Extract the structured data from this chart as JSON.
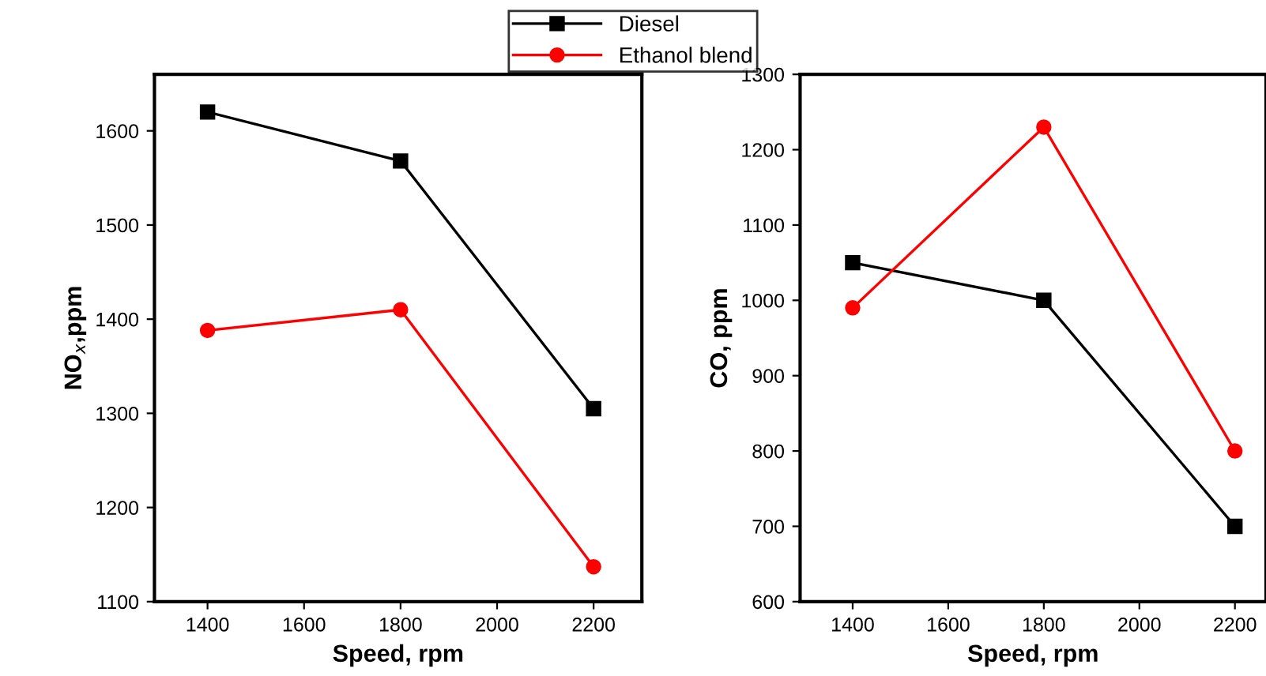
{
  "chart_data": [
    {
      "type": "line",
      "xlabel": "Speed, rpm",
      "ylabel": "NO$_{x}$,ppm",
      "x": [
        1400,
        1800,
        2200
      ],
      "xlim": [
        1290,
        2300
      ],
      "xticks": [
        1400,
        1600,
        1800,
        2000,
        2200
      ],
      "ylim": [
        1100,
        1660
      ],
      "yticks": [
        1100,
        1200,
        1300,
        1400,
        1500,
        1600
      ],
      "grid": false,
      "legend": "top",
      "series": [
        {
          "name": "Diesel",
          "color": "#000000",
          "marker": "square",
          "values": [
            1620,
            1568,
            1305
          ]
        },
        {
          "name": "Ethanol blend",
          "color": "#ff0000",
          "marker": "circle",
          "values": [
            1388,
            1410,
            1137
          ]
        }
      ]
    },
    {
      "type": "line",
      "xlabel": "Speed, rpm",
      "ylabel": "CO, ppm",
      "x": [
        1400,
        1800,
        2200
      ],
      "xlim": [
        1290,
        2265
      ],
      "xticks": [
        1400,
        1600,
        1800,
        2000,
        2200
      ],
      "ylim": [
        600,
        1300
      ],
      "yticks": [
        600,
        700,
        800,
        900,
        1000,
        1100,
        1200,
        1300
      ],
      "grid": false,
      "series": [
        {
          "name": "Diesel",
          "color": "#000000",
          "marker": "square",
          "values": [
            1050,
            1000,
            700
          ]
        },
        {
          "name": "Ethanol blend",
          "color": "#ff0000",
          "marker": "circle",
          "values": [
            990,
            1230,
            800
          ]
        }
      ]
    }
  ]
}
